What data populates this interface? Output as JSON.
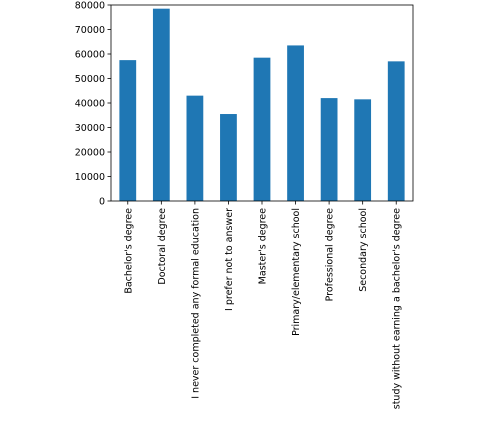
{
  "chart_data": {
    "type": "bar",
    "categories": [
      "Bachelor's degree",
      "Doctoral degree",
      "I never completed any formal education",
      "I prefer not to answer",
      "Master's degree",
      "Primary/elementary school",
      "Professional degree",
      "Secondary school",
      "study without earning a bachelor's degree"
    ],
    "values": [
      57500,
      78500,
      43000,
      35500,
      58500,
      63500,
      42000,
      41500,
      57000
    ],
    "ylim": [
      0,
      80000
    ],
    "yticks": [
      0,
      10000,
      20000,
      30000,
      40000,
      50000,
      60000,
      70000,
      80000
    ],
    "title": "",
    "xlabel": "",
    "ylabel": "",
    "grid": false,
    "bar_color": "#1f77b4"
  }
}
